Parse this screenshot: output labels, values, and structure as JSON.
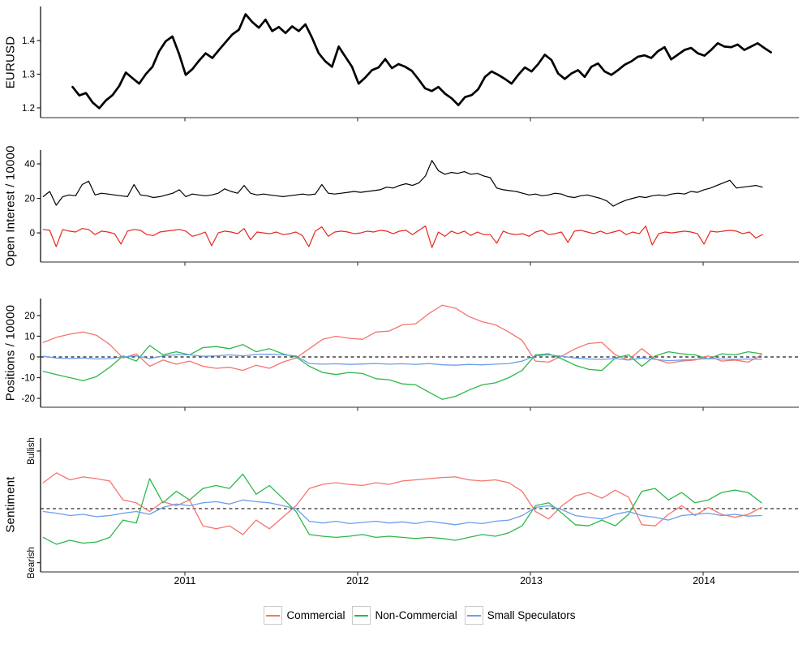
{
  "legend": {
    "items": [
      {
        "label": "Commercial",
        "color": "#F4756E"
      },
      {
        "label": "Non-Commercial",
        "color": "#2CB84B"
      },
      {
        "label": "Small Speculators",
        "color": "#6D9EEB"
      }
    ]
  },
  "xaxis": {
    "ticks": [
      {
        "value": 2011,
        "label": "2011"
      },
      {
        "value": 2012,
        "label": "2012"
      },
      {
        "value": 2013,
        "label": "2013"
      },
      {
        "value": 2014,
        "label": "2014"
      }
    ],
    "xlim": [
      2010.16,
      2014.55
    ]
  },
  "chart_data": [
    {
      "id": "price",
      "type": "line",
      "ylabel": "EURUSD",
      "ylim": [
        1.171,
        1.501
      ],
      "grid": false,
      "yticks": [
        {
          "v": 1.2,
          "label": "1.2"
        },
        {
          "v": 1.3,
          "label": "1.3"
        },
        {
          "v": 1.4,
          "label": "1.4"
        }
      ],
      "series": [
        {
          "name": "eurusd",
          "color": "#000000",
          "width": 2.7,
          "x0": 2010.35,
          "dx": 0.0385,
          "values": [
            1.262,
            1.237,
            1.244,
            1.216,
            1.199,
            1.222,
            1.238,
            1.265,
            1.305,
            1.288,
            1.272,
            1.3,
            1.322,
            1.368,
            1.398,
            1.412,
            1.36,
            1.298,
            1.315,
            1.34,
            1.362,
            1.348,
            1.372,
            1.395,
            1.418,
            1.432,
            1.478,
            1.455,
            1.438,
            1.462,
            1.428,
            1.44,
            1.422,
            1.442,
            1.428,
            1.448,
            1.408,
            1.362,
            1.338,
            1.322,
            1.382,
            1.352,
            1.322,
            1.272,
            1.29,
            1.312,
            1.32,
            1.345,
            1.318,
            1.33,
            1.322,
            1.31,
            1.285,
            1.258,
            1.25,
            1.262,
            1.242,
            1.228,
            1.208,
            1.232,
            1.238,
            1.256,
            1.292,
            1.308,
            1.298,
            1.286,
            1.272,
            1.298,
            1.32,
            1.308,
            1.33,
            1.358,
            1.342,
            1.302,
            1.286,
            1.302,
            1.312,
            1.292,
            1.322,
            1.332,
            1.308,
            1.298,
            1.312,
            1.328,
            1.338,
            1.352,
            1.356,
            1.348,
            1.368,
            1.38,
            1.344,
            1.358,
            1.372,
            1.378,
            1.362,
            1.355,
            1.372,
            1.392,
            1.382,
            1.38,
            1.388,
            1.372,
            1.382,
            1.392,
            1.378,
            1.365
          ]
        }
      ]
    },
    {
      "id": "open_interest",
      "type": "line",
      "ylabel": "Open Interest / 10000",
      "ylim": [
        -16.9,
        48
      ],
      "grid": false,
      "yticks": [
        {
          "v": 0,
          "label": "0"
        },
        {
          "v": 20,
          "label": "20"
        },
        {
          "v": 40,
          "label": "40"
        }
      ],
      "series": [
        {
          "name": "total",
          "color": "#000000",
          "width": 1.2,
          "x0": 2010.18,
          "dx": 0.0375,
          "values": [
            21,
            24,
            16,
            21,
            22,
            21.5,
            28,
            30,
            22,
            23,
            22.5,
            22,
            21.5,
            21,
            28,
            22,
            21.5,
            20.5,
            21,
            22,
            23,
            25,
            21,
            22.5,
            22,
            21.5,
            22,
            23,
            25.5,
            24,
            23,
            27.5,
            23,
            22,
            22.5,
            22,
            21.5,
            21,
            21.5,
            22,
            22.5,
            22,
            22.5,
            28,
            23,
            22.5,
            23,
            23.5,
            24,
            23.5,
            24,
            24.5,
            25,
            26.5,
            26,
            27.5,
            28.5,
            27.5,
            29,
            33,
            42,
            36,
            34,
            35,
            34.5,
            35.5,
            34,
            34.5,
            33,
            32,
            26,
            25,
            24.5,
            24,
            23,
            22,
            22.5,
            21.5,
            22,
            23,
            22.5,
            21,
            20.5,
            21.5,
            22,
            21,
            20,
            18.5,
            15.5,
            17.5,
            19,
            20,
            21,
            20.5,
            21.5,
            22,
            21.5,
            22.5,
            23,
            22.5,
            24,
            23.5,
            25,
            26,
            27.5,
            29,
            30.5,
            26,
            26.5,
            27,
            27.5,
            26.5
          ]
        },
        {
          "name": "change",
          "color": "#E8261D",
          "width": 1.2,
          "x0": 2010.18,
          "dx": 0.0375,
          "values": [
            2,
            1.5,
            -8,
            2,
            1,
            0.5,
            2.5,
            2,
            -1,
            1,
            0.5,
            -0.5,
            -6.5,
            1,
            2,
            1.5,
            -1,
            -1.5,
            0.5,
            1,
            1.5,
            2,
            1,
            -2,
            -1,
            0.5,
            -7.5,
            0,
            1,
            0.5,
            -0.5,
            2.5,
            -4,
            0.5,
            0,
            -0.5,
            0.5,
            -1,
            -0.5,
            0.5,
            -1.5,
            -8,
            1,
            3.5,
            -2,
            0.5,
            1,
            0.5,
            -0.5,
            0,
            1,
            0.5,
            1.5,
            1,
            -0.5,
            1,
            1.5,
            -1,
            1.5,
            4,
            -8.5,
            0.5,
            -2,
            1,
            -0.5,
            1,
            -1.5,
            0.5,
            -1,
            -1,
            -6,
            1,
            -0.5,
            -1,
            -0.5,
            -2,
            0.5,
            1.5,
            -1,
            -0.5,
            0.5,
            -5.5,
            1,
            1.5,
            0.5,
            -0.5,
            1,
            -0.5,
            0.5,
            1.5,
            -1,
            0.5,
            -0.5,
            4,
            -7,
            -0.5,
            0.5,
            0,
            0.5,
            1,
            0.5,
            -0.5,
            -6.5,
            1,
            0.5,
            1,
            1.5,
            1,
            -0.5,
            0.5,
            -3,
            -1
          ]
        }
      ]
    },
    {
      "id": "positions",
      "type": "line",
      "ylabel": "Positions / 10000",
      "ylim": [
        -24.3,
        28.2
      ],
      "grid": false,
      "hline": 0,
      "yticks": [
        {
          "v": -20,
          "label": "-20"
        },
        {
          "v": -10,
          "label": "-10"
        },
        {
          "v": 0,
          "label": "0"
        },
        {
          "v": 10,
          "label": "10"
        },
        {
          "v": 20,
          "label": "20"
        }
      ],
      "series": [
        {
          "name": "commercial",
          "color": "#F4756E",
          "width": 1.3,
          "x0": 2010.18,
          "dx": 0.077,
          "values": [
            7,
            9.5,
            11,
            12,
            10.5,
            6,
            -0.5,
            1.5,
            -4.5,
            -1.5,
            -3.5,
            -2,
            -4.5,
            -5.5,
            -5,
            -6.5,
            -4,
            -5.5,
            -2.5,
            -0.5,
            4,
            8.5,
            10,
            9,
            8.5,
            12,
            12.5,
            15.5,
            16,
            21,
            25,
            23.5,
            19.5,
            17,
            15.5,
            12,
            8,
            -2,
            -2.5,
            0.5,
            4,
            6.5,
            7,
            1,
            -1.5,
            4,
            -1,
            -3,
            -2,
            -1.5,
            0.5,
            -2,
            -1.5,
            -2.5,
            1
          ]
        },
        {
          "name": "non_commercial",
          "color": "#2CB84B",
          "width": 1.3,
          "x0": 2010.18,
          "dx": 0.077,
          "values": [
            -7,
            -8.5,
            -10,
            -11.5,
            -9.5,
            -5,
            0.5,
            -2,
            5.5,
            1,
            2.5,
            1,
            4.5,
            5,
            4,
            6,
            2.5,
            4,
            1.5,
            0,
            -4.5,
            -7.5,
            -8.5,
            -7.5,
            -8,
            -10.5,
            -11,
            -13,
            -13.5,
            -17,
            -20.5,
            -19,
            -16,
            -13.5,
            -12.5,
            -10,
            -6.5,
            1,
            1.5,
            -1,
            -4,
            -6,
            -6.5,
            -0.5,
            1,
            -4.5,
            0.5,
            2.5,
            1.5,
            1,
            -1,
            1.5,
            1,
            2.5,
            1.5
          ]
        },
        {
          "name": "small_speculators",
          "color": "#6D9EEB",
          "width": 1.3,
          "x0": 2010.18,
          "dx": 0.077,
          "values": [
            0.3,
            -0.5,
            -0.8,
            -0.5,
            -1,
            -0.8,
            0,
            0.5,
            -0.8,
            0.5,
            1,
            1,
            0.3,
            0.5,
            1,
            0.5,
            1.2,
            1.3,
            1,
            0.5,
            -3.2,
            -3.5,
            -3.3,
            -3.6,
            -3.4,
            -3.2,
            -3.5,
            -3.3,
            -3.6,
            -3.2,
            -3.8,
            -4,
            -3.6,
            -3.8,
            -3.5,
            -3.2,
            -2,
            0.5,
            1,
            0.3,
            -0.5,
            -1,
            -1.2,
            -0.8,
            -1.5,
            -0.5,
            -1.2,
            -1.8,
            -1.5,
            -1.2,
            -0.8,
            -1,
            -1.2,
            -1,
            -1.1
          ]
        }
      ]
    },
    {
      "id": "sentiment",
      "type": "line",
      "ylabel": "Sentiment",
      "ylim": [
        -1.1,
        1.225
      ],
      "grid": false,
      "hline": 0,
      "yticks": [
        {
          "v": 1.0,
          "label": "Bullish",
          "rot": true
        },
        {
          "v": -0.94,
          "label": "Bearish",
          "rot": true
        }
      ],
      "series": [
        {
          "name": "commercial",
          "color": "#F4756E",
          "width": 1.3,
          "x0": 2010.18,
          "dx": 0.077,
          "values": [
            0.45,
            0.62,
            0.5,
            0.55,
            0.52,
            0.48,
            0.15,
            0.1,
            -0.05,
            0.12,
            0.05,
            0.15,
            -0.3,
            -0.35,
            -0.3,
            -0.45,
            -0.2,
            -0.35,
            -0.15,
            0.05,
            0.35,
            0.42,
            0.45,
            0.42,
            0.4,
            0.45,
            0.42,
            0.48,
            0.5,
            0.52,
            0.54,
            0.55,
            0.5,
            0.48,
            0.5,
            0.45,
            0.3,
            -0.05,
            -0.18,
            0.05,
            0.22,
            0.28,
            0.18,
            0.32,
            0.2,
            -0.28,
            -0.3,
            -0.1,
            0.05,
            -0.12,
            0.02,
            -0.1,
            -0.15,
            -0.1,
            0.02
          ]
        },
        {
          "name": "non_commercial",
          "color": "#2CB84B",
          "width": 1.3,
          "x0": 2010.18,
          "dx": 0.077,
          "values": [
            -0.5,
            -0.62,
            -0.55,
            -0.6,
            -0.58,
            -0.5,
            -0.2,
            -0.25,
            0.52,
            0.1,
            0.3,
            0.15,
            0.35,
            0.4,
            0.35,
            0.6,
            0.25,
            0.4,
            0.18,
            -0.05,
            -0.45,
            -0.48,
            -0.5,
            -0.48,
            -0.45,
            -0.5,
            -0.48,
            -0.5,
            -0.52,
            -0.5,
            -0.52,
            -0.55,
            -0.5,
            -0.45,
            -0.48,
            -0.42,
            -0.3,
            0.05,
            0.1,
            -0.08,
            -0.28,
            -0.3,
            -0.2,
            -0.3,
            -0.1,
            0.3,
            0.35,
            0.15,
            0.28,
            0.1,
            0.15,
            0.28,
            0.32,
            0.28,
            0.1
          ]
        },
        {
          "name": "small_speculators",
          "color": "#6D9EEB",
          "width": 1.3,
          "x0": 2010.18,
          "dx": 0.077,
          "values": [
            -0.05,
            -0.08,
            -0.12,
            -0.1,
            -0.14,
            -0.12,
            -0.08,
            -0.05,
            -0.1,
            0.02,
            0.08,
            0.05,
            0.1,
            0.12,
            0.08,
            0.15,
            0.12,
            0.1,
            0.05,
            0,
            -0.22,
            -0.25,
            -0.22,
            -0.26,
            -0.24,
            -0.22,
            -0.25,
            -0.23,
            -0.26,
            -0.22,
            -0.25,
            -0.28,
            -0.24,
            -0.26,
            -0.22,
            -0.2,
            -0.12,
            0.02,
            0.05,
            -0.02,
            -0.12,
            -0.15,
            -0.18,
            -0.1,
            -0.05,
            -0.12,
            -0.15,
            -0.2,
            -0.12,
            -0.1,
            -0.08,
            -0.12,
            -0.1,
            -0.13,
            -0.12
          ]
        }
      ]
    }
  ]
}
